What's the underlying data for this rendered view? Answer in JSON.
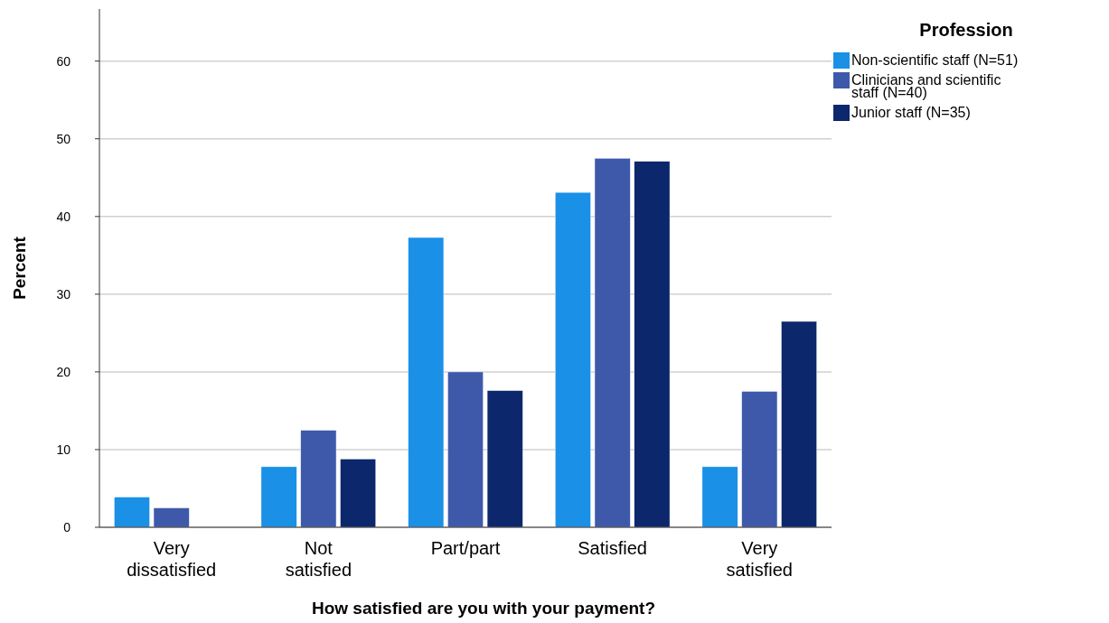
{
  "chart_data": {
    "type": "bar",
    "xlabel": "How satisfied are you with your payment?",
    "ylabel": "Percent",
    "legend_title": "Profession",
    "legend": "top right",
    "grid": "y",
    "categories": [
      "Very dissatisfied",
      "Not satisfied",
      "Part/part",
      "Satisfied",
      "Very satisfied"
    ],
    "ylim": [
      0,
      66.7
    ],
    "yticks": [
      0,
      10,
      20,
      30,
      40,
      50,
      60
    ],
    "series": [
      {
        "name": "Non-scientific staff (N=51)",
        "color": "#1a90e6",
        "values": [
          3.9,
          7.8,
          37.3,
          43.1,
          7.8
        ]
      },
      {
        "name": "Clinicians and scientific staff (N=40)",
        "color": "#3f59aa",
        "values": [
          2.5,
          12.5,
          20,
          47.5,
          17.5
        ]
      },
      {
        "name": "Junior staff (N=35)",
        "color": "#0c276c",
        "values": [
          0,
          8.8,
          17.6,
          47.1,
          26.5
        ]
      }
    ]
  }
}
